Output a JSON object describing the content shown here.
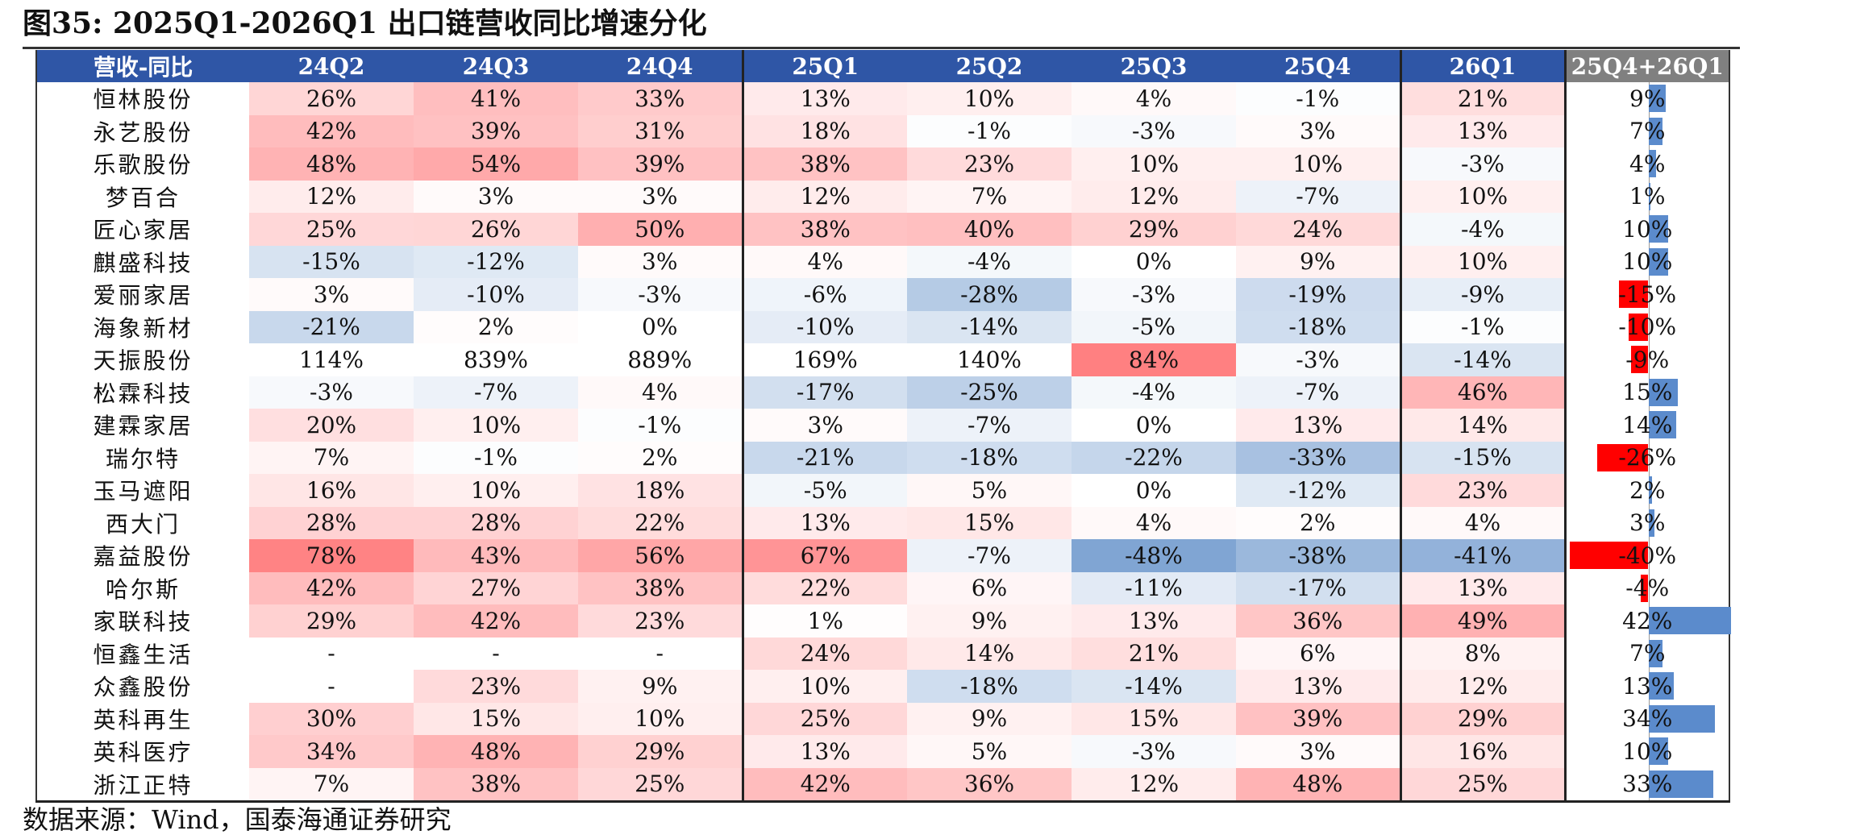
{
  "title": "图35:  2025Q1-2026Q1 出口链营收同比增速分化",
  "source": "数据来源：Wind，国泰海通证券研究",
  "colors": {
    "header_bg": "#2f56a6",
    "header_last_bg": "#808080",
    "positive": "#f8696b",
    "negative": "#5a8ac6",
    "bar_positive": "#5b8bcc",
    "bar_negative": "#ff0000"
  },
  "table": {
    "headers": [
      "营收-同比",
      "24Q2",
      "24Q3",
      "24Q4",
      "25Q1",
      "25Q2",
      "25Q3",
      "25Q4",
      "26Q1",
      "25Q4+26Q1"
    ],
    "rows": [
      {
        "name": "恒林股份",
        "cells": [
          "26%",
          "41%",
          "33%",
          "13%",
          "10%",
          "4%",
          "-1%",
          "21%"
        ],
        "combined": "9%"
      },
      {
        "name": "永艺股份",
        "cells": [
          "42%",
          "39%",
          "31%",
          "18%",
          "-1%",
          "-3%",
          "3%",
          "13%"
        ],
        "combined": "7%"
      },
      {
        "name": "乐歌股份",
        "cells": [
          "48%",
          "54%",
          "39%",
          "38%",
          "23%",
          "10%",
          "10%",
          "-3%"
        ],
        "combined": "4%"
      },
      {
        "name": "梦百合",
        "cells": [
          "12%",
          "3%",
          "3%",
          "12%",
          "7%",
          "12%",
          "-7%",
          "10%"
        ],
        "combined": "1%"
      },
      {
        "name": "匠心家居",
        "cells": [
          "25%",
          "26%",
          "50%",
          "38%",
          "40%",
          "29%",
          "24%",
          "-4%"
        ],
        "combined": "10%"
      },
      {
        "name": "麒盛科技",
        "cells": [
          "-15%",
          "-12%",
          "3%",
          "4%",
          "-4%",
          "0%",
          "9%",
          "10%"
        ],
        "combined": "10%"
      },
      {
        "name": "爱丽家居",
        "cells": [
          "3%",
          "-10%",
          "-3%",
          "-6%",
          "-28%",
          "-3%",
          "-19%",
          "-9%"
        ],
        "combined": "-15%"
      },
      {
        "name": "海象新材",
        "cells": [
          "-21%",
          "2%",
          "0%",
          "-10%",
          "-14%",
          "-5%",
          "-18%",
          "-1%"
        ],
        "combined": "-10%"
      },
      {
        "name": "天振股份",
        "cells": [
          "114%",
          "839%",
          "889%",
          "169%",
          "140%",
          "84%",
          "-3%",
          "-14%"
        ],
        "combined": "-9%"
      },
      {
        "name": "松霖科技",
        "cells": [
          "-3%",
          "-7%",
          "4%",
          "-17%",
          "-25%",
          "-4%",
          "-7%",
          "46%"
        ],
        "combined": "15%"
      },
      {
        "name": "建霖家居",
        "cells": [
          "20%",
          "10%",
          "-1%",
          "3%",
          "-7%",
          "0%",
          "13%",
          "14%"
        ],
        "combined": "14%"
      },
      {
        "name": "瑞尔特",
        "cells": [
          "7%",
          "-1%",
          "2%",
          "-21%",
          "-18%",
          "-22%",
          "-33%",
          "-15%"
        ],
        "combined": "-26%"
      },
      {
        "name": "玉马遮阳",
        "cells": [
          "16%",
          "10%",
          "18%",
          "-5%",
          "5%",
          "0%",
          "-12%",
          "23%"
        ],
        "combined": "2%"
      },
      {
        "name": "西大门",
        "cells": [
          "28%",
          "28%",
          "22%",
          "13%",
          "15%",
          "4%",
          "2%",
          "4%"
        ],
        "combined": "3%"
      },
      {
        "name": "嘉益股份",
        "cells": [
          "78%",
          "43%",
          "56%",
          "67%",
          "-7%",
          "-48%",
          "-38%",
          "-41%"
        ],
        "combined": "-40%"
      },
      {
        "name": "哈尔斯",
        "cells": [
          "42%",
          "27%",
          "38%",
          "22%",
          "6%",
          "-11%",
          "-17%",
          "13%"
        ],
        "combined": "-4%"
      },
      {
        "name": "家联科技",
        "cells": [
          "29%",
          "42%",
          "23%",
          "1%",
          "9%",
          "13%",
          "36%",
          "49%"
        ],
        "combined": "42%"
      },
      {
        "name": "恒鑫生活",
        "cells": [
          "-",
          "-",
          "-",
          "24%",
          "14%",
          "21%",
          "6%",
          "8%"
        ],
        "combined": "7%"
      },
      {
        "name": "众鑫股份",
        "cells": [
          "-",
          "23%",
          "9%",
          "10%",
          "-18%",
          "-14%",
          "13%",
          "12%"
        ],
        "combined": "13%"
      },
      {
        "name": "英科再生",
        "cells": [
          "30%",
          "15%",
          "10%",
          "25%",
          "9%",
          "15%",
          "39%",
          "29%"
        ],
        "combined": "34%"
      },
      {
        "name": "英科医疗",
        "cells": [
          "34%",
          "48%",
          "29%",
          "13%",
          "5%",
          "-3%",
          "3%",
          "16%"
        ],
        "combined": "10%"
      },
      {
        "name": "浙江正特",
        "cells": [
          "7%",
          "38%",
          "25%",
          "42%",
          "36%",
          "12%",
          "48%",
          "25%"
        ],
        "combined": "33%"
      }
    ]
  }
}
